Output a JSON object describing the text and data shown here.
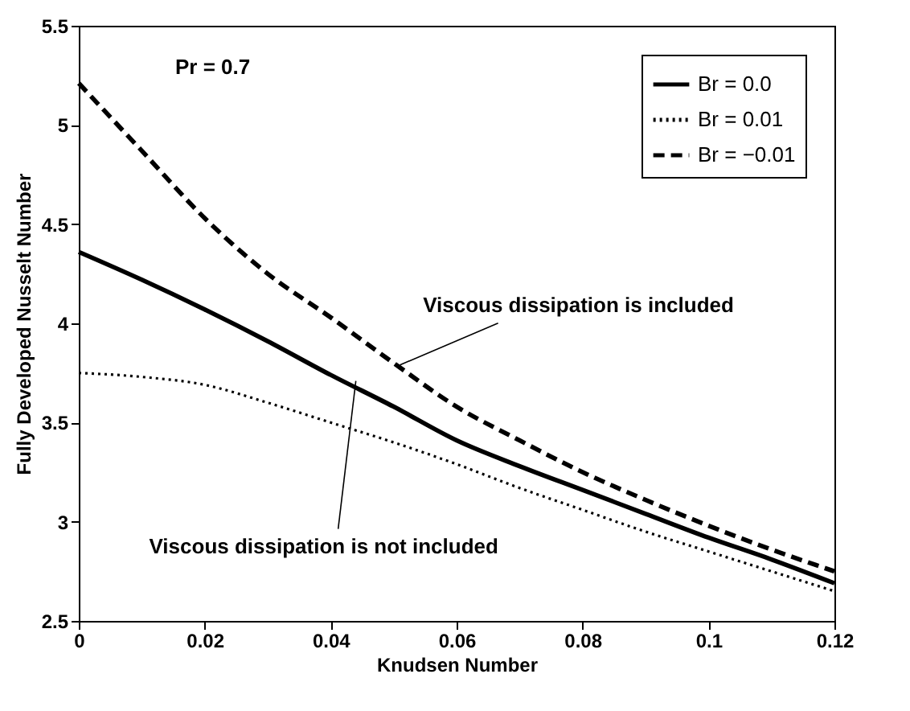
{
  "chart_data": {
    "type": "line",
    "xlabel": "Knudsen Number",
    "ylabel": "Fully Developed Nusselt Number",
    "x": [
      0,
      0.01,
      0.02,
      0.03,
      0.04,
      0.05,
      0.06,
      0.07,
      0.08,
      0.09,
      0.1,
      0.11,
      0.12
    ],
    "series": [
      {
        "name": "Br = 0.0",
        "color": "#000000",
        "line_style": "solid",
        "values": [
          4.36,
          4.22,
          4.07,
          3.91,
          3.74,
          3.58,
          3.41,
          3.28,
          3.16,
          3.04,
          2.92,
          2.81,
          2.69
        ]
      },
      {
        "name": "Br = 0.01",
        "color": "#000000",
        "line_style": "dotted",
        "values": [
          3.75,
          3.73,
          3.69,
          3.6,
          3.5,
          3.4,
          3.29,
          3.17,
          3.06,
          2.95,
          2.85,
          2.75,
          2.65
        ]
      },
      {
        "name": "Br = −0.01",
        "color": "#000000",
        "line_style": "dashed",
        "values": [
          5.21,
          4.87,
          4.53,
          4.25,
          4.03,
          3.8,
          3.58,
          3.41,
          3.25,
          3.11,
          2.98,
          2.86,
          2.75
        ]
      }
    ],
    "xlim": [
      0,
      0.12
    ],
    "xticks": [
      0,
      0.02,
      0.04,
      0.06,
      0.08,
      0.1,
      0.12
    ],
    "ylim": [
      2.5,
      5.5
    ],
    "yticks": [
      2.5,
      3,
      3.5,
      4,
      4.5,
      5,
      5.5
    ],
    "grid": false,
    "legend": "top right",
    "marker": "none",
    "annotations": [
      "Pr = 0.7",
      {
        "text": "Viscous dissipation is included",
        "x": 0.051,
        "y": 3.79
      },
      {
        "text": "Viscous dissipation is not included",
        "x": 0.044,
        "y": 3.71
      }
    ]
  }
}
